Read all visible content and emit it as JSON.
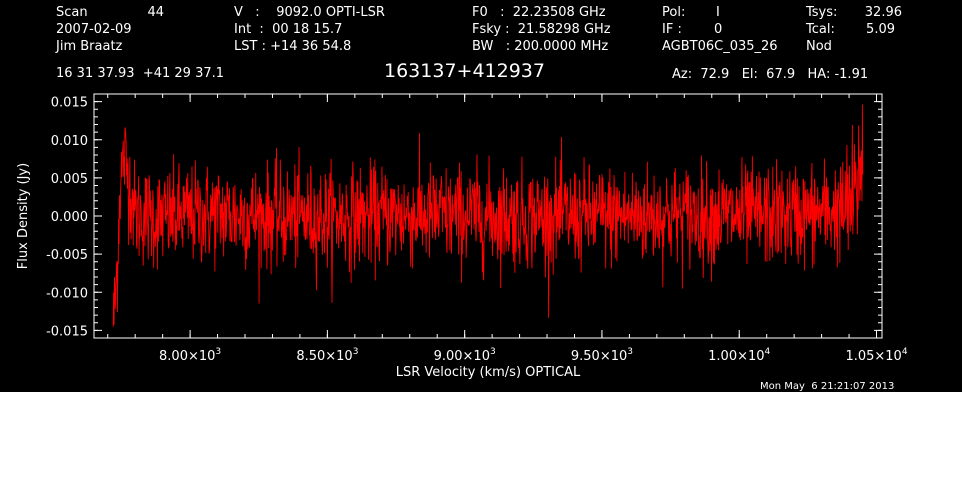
{
  "header": {
    "scan_label": "Scan",
    "scan_number": "44",
    "date": "2007-02-09",
    "observer": "Jim Braatz",
    "ra_dec": "16 31 37.93  +41 29 37.1",
    "velocity_line": "V   :    9092.0 OPTI-LSR",
    "int_line": "Int  :  00 18 15.7",
    "lst_line": "LST : +14 36 54.8",
    "f0_line": "F0   :  22.23508 GHz",
    "fsky_line": "Fsky :  21.58298 GHz",
    "bw_line": "BW   : 200.0000 MHz",
    "pol_label": "Pol:",
    "pol_value": "I",
    "if_label": "IF :",
    "if_value": "0",
    "project": "AGBT06C_035_26",
    "tsys_label": "Tsys:",
    "tsys_value": "32.96",
    "tcal_label": "Tcal:",
    "tcal_value": "5.09",
    "mode": "Nod",
    "source_name": "163137+412937",
    "az_el_ha": "Az:  72.9   El:  67.9   HA: -1.91"
  },
  "footer": {
    "timestamp": "Mon May  6 21:21:07 2013"
  },
  "colors": {
    "background": "#000000",
    "foreground": "#ffffff",
    "spectrum": "#ff0000"
  },
  "chart_data": {
    "type": "line",
    "title": "163137+412937",
    "xlabel": "LSR Velocity (km/s) OPTICAL",
    "ylabel": "Flux Density (Jy)",
    "xlim": [
      7650,
      10520
    ],
    "ylim": [
      -0.016,
      0.016
    ],
    "x_ticks": [
      {
        "value": 8000,
        "mantissa": "8.00",
        "exponent": "3"
      },
      {
        "value": 8500,
        "mantissa": "8.50",
        "exponent": "3"
      },
      {
        "value": 9000,
        "mantissa": "9.00",
        "exponent": "3"
      },
      {
        "value": 9500,
        "mantissa": "9.50",
        "exponent": "3"
      },
      {
        "value": 10000,
        "mantissa": "1.00",
        "exponent": "4"
      },
      {
        "value": 10500,
        "mantissa": "1.05",
        "exponent": "4"
      }
    ],
    "y_ticks": [
      0.015,
      0.01,
      0.005,
      0.0,
      -0.005,
      -0.01,
      -0.015
    ],
    "y_tick_labels": [
      "0.015",
      "0.010",
      "0.005",
      "0.000",
      "-0.005",
      "-0.010",
      "-0.015"
    ],
    "grid": false,
    "series": [
      {
        "x_start": 7720,
        "x_end": 10450,
        "rms": 0.0033,
        "points": [
          [
            7720,
            -0.0135
          ],
          [
            7725,
            -0.0125
          ],
          [
            7735,
            -0.006
          ],
          [
            7745,
            0.004
          ],
          [
            7760,
            0.008
          ],
          [
            7800,
            0.0002
          ],
          [
            7900,
            -0.0003
          ],
          [
            8000,
            0.0001
          ],
          [
            8100,
            0.0003
          ],
          [
            8250,
            0.0
          ],
          [
            8500,
            -0.0002
          ],
          [
            8750,
            0.0001
          ],
          [
            9000,
            0.0
          ],
          [
            9250,
            -0.0001
          ],
          [
            9500,
            0.0
          ],
          [
            9750,
            0.0001
          ],
          [
            10000,
            0.0
          ],
          [
            10250,
            0.0002
          ],
          [
            10380,
            0.0008
          ],
          [
            10420,
            0.002
          ],
          [
            10440,
            0.006
          ],
          [
            10450,
            0.0105
          ]
        ]
      }
    ]
  }
}
